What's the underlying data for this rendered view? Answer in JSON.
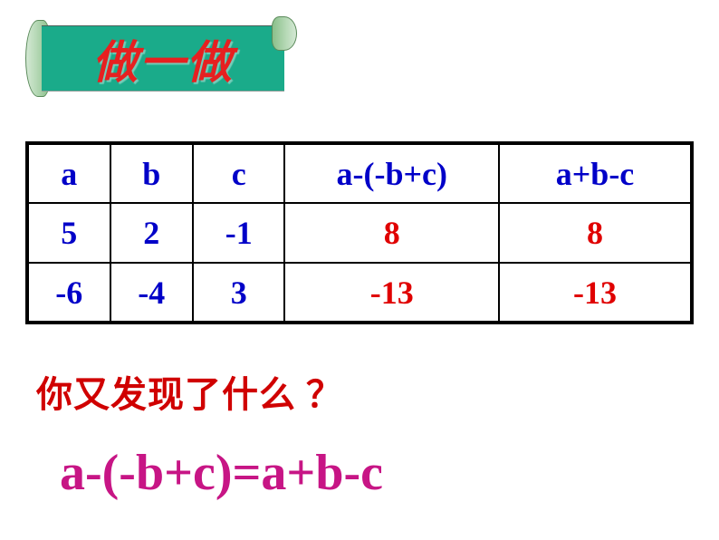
{
  "banner": {
    "text": "做一做",
    "bg_color": "#1aab8a",
    "text_color": "#e62020",
    "scroll_color": "#b8dab8"
  },
  "table": {
    "border_color": "#000000",
    "header_color": "#0000c8",
    "input_color": "#0000c8",
    "result_color": "#e00000",
    "headers": {
      "c1": "a",
      "c2": "b",
      "c3": "c",
      "c4": "a-(-b+c)",
      "c5": "a+b-c"
    },
    "row1": {
      "a": "5",
      "b": "2",
      "c": "-1",
      "expr1": "8",
      "expr2": "8"
    },
    "row2": {
      "a": "-6",
      "b": "-4",
      "c": "3",
      "expr1": "-13",
      "expr2": "-13"
    }
  },
  "question": {
    "text": "你又发现了什么 ？",
    "color": "#d00000",
    "font_size": 40
  },
  "equation": {
    "text": "a-(-b+c)=a+b-c",
    "color": "#c71585",
    "font_size": 56
  }
}
